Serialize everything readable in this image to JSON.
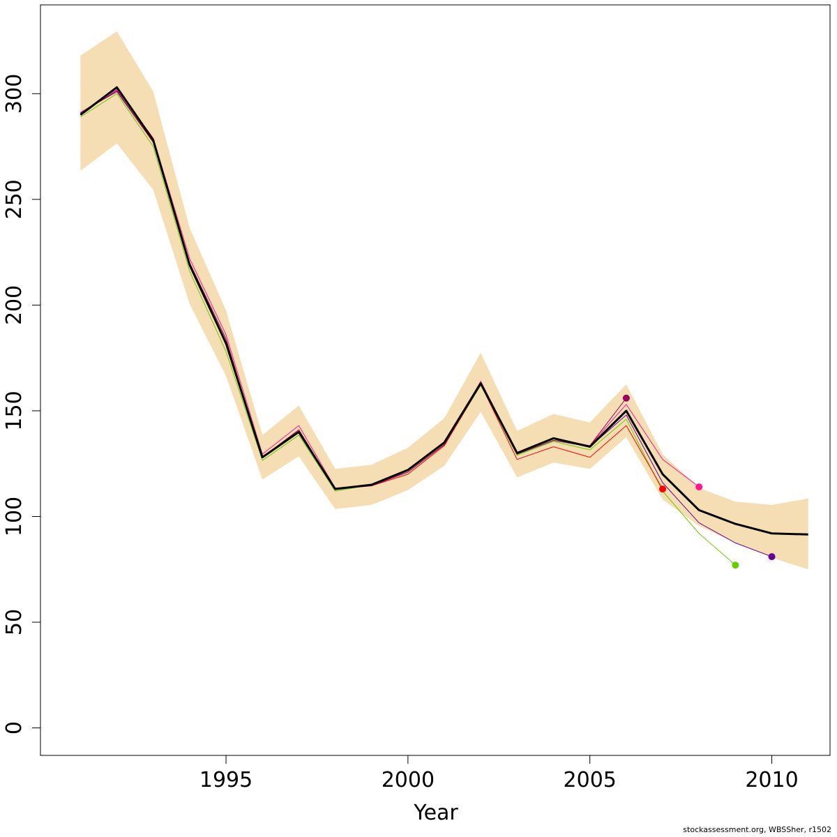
{
  "chart_data": {
    "type": "line",
    "xlabel": "Year",
    "ylabel": "",
    "xlim": [
      1989.9,
      2011.6
    ],
    "ylim": [
      -13,
      342
    ],
    "x_ticks": [
      1995,
      2000,
      2005,
      2010
    ],
    "y_ticks": [
      0,
      50,
      100,
      150,
      200,
      250,
      300
    ],
    "colors": {
      "band": "#f5deb3",
      "main": "#000000",
      "retro_2006": "#9b0060",
      "retro_2007": "#ff0000",
      "retro_2008": "#ff1493",
      "retro_2009": "#66cc00",
      "retro_2010": "#660099"
    },
    "band": {
      "x": [
        1991,
        1992,
        1993,
        1994,
        1995,
        1996,
        1997,
        1998,
        1999,
        2000,
        2001,
        2002,
        2003,
        2004,
        2005,
        2006,
        2007,
        2008,
        2009,
        2010,
        2011
      ],
      "lower": [
        263.5,
        276.5,
        254.5,
        200.5,
        166.5,
        117.5,
        128.5,
        103.5,
        105.5,
        112.5,
        124,
        149.5,
        118.5,
        125.5,
        122.5,
        137.5,
        108,
        95.5,
        87.5,
        80.5,
        75
      ],
      "upper": [
        318,
        329.5,
        301,
        236.5,
        197.5,
        138.5,
        152.5,
        122.5,
        124.5,
        132.5,
        146.5,
        177.5,
        140.5,
        148.5,
        144.5,
        162.5,
        129.5,
        113.5,
        107,
        105.5,
        108.5
      ]
    },
    "series": [
      {
        "key": "retro_2009",
        "x": [
          1991,
          1992,
          1993,
          1994,
          1995,
          1996,
          1997,
          1998,
          1999,
          2000,
          2001,
          2002,
          2003,
          2004,
          2005,
          2006,
          2007,
          2008,
          2009
        ],
        "values": [
          289,
          300,
          275,
          216,
          178,
          126.5,
          138.5,
          112,
          115,
          121,
          134,
          162,
          129,
          135.5,
          131.5,
          146,
          112,
          92,
          77
        ]
      },
      {
        "key": "retro_2010",
        "x": [
          1991,
          1992,
          1993,
          1994,
          1995,
          1996,
          1997,
          1998,
          1999,
          2000,
          2001,
          2002,
          2003,
          2004,
          2005,
          2006,
          2007,
          2008,
          2009,
          2010
        ],
        "values": [
          290.5,
          301.5,
          277,
          219.5,
          181,
          128,
          140,
          113,
          115,
          122,
          134.5,
          163,
          129.5,
          136,
          133,
          148,
          116,
          97,
          87.5,
          81
        ]
      },
      {
        "key": "retro_2007",
        "x": [
          1991,
          1992,
          1993,
          1994,
          1995,
          1996,
          1997,
          1998,
          1999,
          2000,
          2001,
          2002,
          2003,
          2004,
          2005,
          2006,
          2007
        ],
        "values": [
          291,
          301,
          277,
          219,
          182,
          128,
          141,
          113,
          114.5,
          120,
          133.5,
          162.5,
          127,
          133,
          128,
          143,
          113
        ]
      },
      {
        "key": "retro_2008",
        "x": [
          1991,
          1992,
          1993,
          1994,
          1995,
          1996,
          1997,
          1998,
          1999,
          2000,
          2001,
          2002,
          2003,
          2004,
          2005,
          2006,
          2007,
          2008
        ],
        "values": [
          291,
          302,
          279,
          222,
          186,
          129.5,
          143,
          113.5,
          115,
          121,
          134,
          164,
          130,
          137,
          133.5,
          153,
          127,
          114
        ]
      },
      {
        "key": "retro_2006",
        "x": [
          1991,
          1992,
          1993,
          1994,
          1995,
          1996,
          1997,
          1998,
          1999,
          2000,
          2001,
          2002,
          2003,
          2004,
          2005,
          2006
        ],
        "values": [
          291,
          301,
          277,
          220,
          184,
          128,
          141,
          113,
          114.5,
          121,
          134,
          163,
          129.5,
          136,
          133.5,
          156
        ]
      },
      {
        "key": "main",
        "x": [
          1991,
          1992,
          1993,
          1994,
          1995,
          1996,
          1997,
          1998,
          1999,
          2000,
          2001,
          2002,
          2003,
          2004,
          2005,
          2006,
          2007,
          2008,
          2009,
          2010,
          2011
        ],
        "values": [
          290,
          303,
          278,
          219,
          182,
          128,
          140,
          113,
          115,
          122,
          135,
          163,
          130,
          137,
          133,
          150,
          120,
          103,
          96.5,
          92,
          91.5
        ]
      }
    ]
  },
  "footer": "stockassessment.org, WBSSher, r1502"
}
